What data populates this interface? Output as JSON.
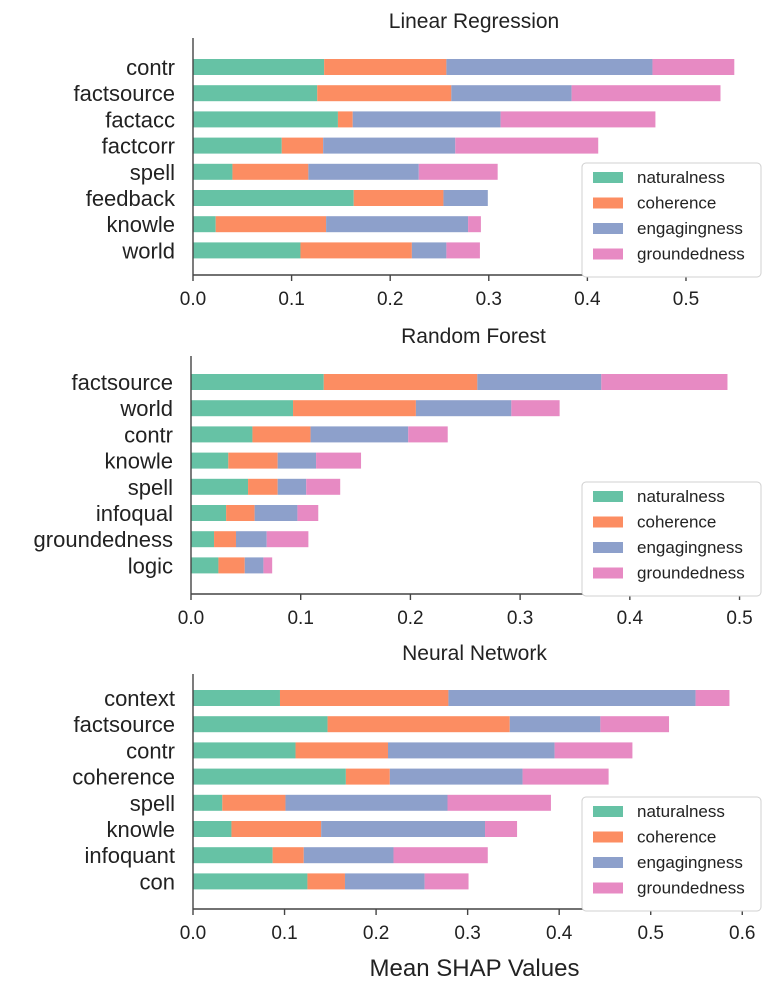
{
  "chart_data": [
    {
      "type": "bar",
      "orientation": "horizontal",
      "stacked": true,
      "title": "Linear Regression",
      "categories": [
        "contr",
        "factsource",
        "factacc",
        "factcorr",
        "spell",
        "feedback",
        "knowle",
        "world"
      ],
      "series": [
        {
          "name": "naturalness",
          "values": [
            0.133,
            0.126,
            0.147,
            0.09,
            0.04,
            0.163,
            0.023,
            0.109
          ]
        },
        {
          "name": "coherence",
          "values": [
            0.124,
            0.136,
            0.015,
            0.042,
            0.077,
            0.091,
            0.112,
            0.113
          ]
        },
        {
          "name": "engagingness",
          "values": [
            0.209,
            0.122,
            0.15,
            0.134,
            0.112,
            0.045,
            0.144,
            0.035
          ]
        },
        {
          "name": "groundedness",
          "values": [
            0.083,
            0.151,
            0.157,
            0.145,
            0.08,
            0.0,
            0.013,
            0.034
          ]
        }
      ],
      "xticks": [
        "0.0",
        "0.1",
        "0.2",
        "0.3",
        "0.4",
        "0.5"
      ],
      "xlim": [
        0,
        0.57
      ],
      "legend": "bottom-right"
    },
    {
      "type": "bar",
      "orientation": "horizontal",
      "stacked": true,
      "title": "Random Forest",
      "categories": [
        "factsource",
        "world",
        "contr",
        "knowle",
        "spell",
        "infoqual",
        "groundedness",
        "logic"
      ],
      "series": [
        {
          "name": "naturalness",
          "values": [
            0.121,
            0.093,
            0.056,
            0.034,
            0.052,
            0.032,
            0.021,
            0.025
          ]
        },
        {
          "name": "coherence",
          "values": [
            0.14,
            0.112,
            0.053,
            0.045,
            0.027,
            0.026,
            0.02,
            0.024
          ]
        },
        {
          "name": "engagingness",
          "values": [
            0.113,
            0.087,
            0.089,
            0.035,
            0.026,
            0.039,
            0.028,
            0.017
          ]
        },
        {
          "name": "groundedness",
          "values": [
            0.115,
            0.044,
            0.036,
            0.041,
            0.031,
            0.019,
            0.038,
            0.008
          ]
        }
      ],
      "xticks": [
        "0.0",
        "0.1",
        "0.2",
        "0.3",
        "0.4",
        "0.5"
      ],
      "xlim": [
        0,
        0.515
      ],
      "legend": "bottom-right"
    },
    {
      "type": "bar",
      "orientation": "horizontal",
      "stacked": true,
      "title": "Neural Network",
      "categories": [
        "context",
        "factsource",
        "contr",
        "coherence",
        "spell",
        "knowle",
        "infoquant",
        "con"
      ],
      "series": [
        {
          "name": "naturalness",
          "values": [
            0.095,
            0.147,
            0.112,
            0.167,
            0.032,
            0.042,
            0.087,
            0.125
          ]
        },
        {
          "name": "coherence",
          "values": [
            0.184,
            0.199,
            0.101,
            0.048,
            0.069,
            0.098,
            0.034,
            0.041
          ]
        },
        {
          "name": "engagingness",
          "values": [
            0.27,
            0.099,
            0.182,
            0.145,
            0.177,
            0.179,
            0.098,
            0.087
          ]
        },
        {
          "name": "groundedness",
          "values": [
            0.037,
            0.075,
            0.085,
            0.094,
            0.113,
            0.035,
            0.103,
            0.048
          ]
        }
      ],
      "xticks": [
        "0.0",
        "0.1",
        "0.2",
        "0.3",
        "0.4",
        "0.5",
        "0.6"
      ],
      "xlim": [
        0,
        0.615
      ],
      "legend": "bottom-right",
      "xlabel": "Mean SHAP Values"
    }
  ],
  "colors": {
    "naturalness": "#66c2a5",
    "coherence": "#fc8d62",
    "engagingness": "#8da0cb",
    "groundedness": "#e78ac3"
  }
}
